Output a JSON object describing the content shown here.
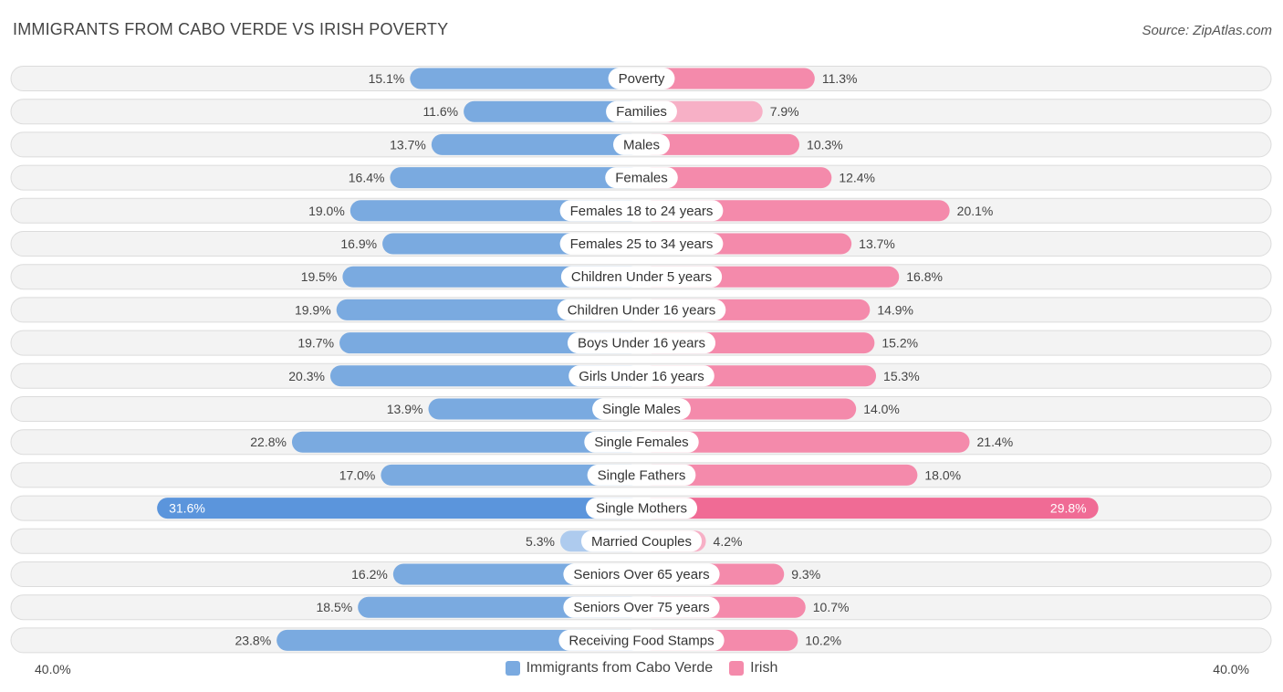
{
  "header": {
    "title": "IMMIGRANTS FROM CABO VERDE VS IRISH POVERTY",
    "source": "Source: ZipAtlas.com"
  },
  "colors": {
    "left": "#7aaae0",
    "left_light": "#aecbee",
    "left_strong": "#5b95dc",
    "right": "#f48aab",
    "right_light": "#f7b0c6",
    "right_strong": "#f06b95"
  },
  "axis": {
    "left_label": "40.0%",
    "right_label": "40.0%"
  },
  "legend": {
    "left_label": "Immigrants from Cabo Verde",
    "right_label": "Irish"
  },
  "chart_data": {
    "type": "bar",
    "orientation": "horizontal-diverging",
    "title": "IMMIGRANTS FROM CABO VERDE VS IRISH POVERTY",
    "xlim": [
      -40,
      40
    ],
    "categories": [
      "Poverty",
      "Families",
      "Males",
      "Females",
      "Females 18 to 24 years",
      "Females 25 to 34 years",
      "Children Under 5 years",
      "Children Under 16 years",
      "Boys Under 16 years",
      "Girls Under 16 years",
      "Single Males",
      "Single Females",
      "Single Fathers",
      "Single Mothers",
      "Married Couples",
      "Seniors Over 65 years",
      "Seniors Over 75 years",
      "Receiving Food Stamps"
    ],
    "series": [
      {
        "name": "Immigrants from Cabo Verde",
        "values": [
          15.1,
          11.6,
          13.7,
          16.4,
          19.0,
          16.9,
          19.5,
          19.9,
          19.7,
          20.3,
          13.9,
          22.8,
          17.0,
          31.6,
          5.3,
          16.2,
          18.5,
          23.8
        ],
        "labels": [
          "15.1%",
          "11.6%",
          "13.7%",
          "16.4%",
          "19.0%",
          "16.9%",
          "19.5%",
          "19.9%",
          "19.7%",
          "20.3%",
          "13.9%",
          "22.8%",
          "17.0%",
          "31.6%",
          "5.3%",
          "16.2%",
          "18.5%",
          "23.8%"
        ]
      },
      {
        "name": "Irish",
        "values": [
          11.3,
          7.9,
          10.3,
          12.4,
          20.1,
          13.7,
          16.8,
          14.9,
          15.2,
          15.3,
          14.0,
          21.4,
          18.0,
          29.8,
          4.2,
          9.3,
          10.7,
          10.2
        ],
        "labels": [
          "11.3%",
          "7.9%",
          "10.3%",
          "12.4%",
          "20.1%",
          "13.7%",
          "16.8%",
          "14.9%",
          "15.2%",
          "15.3%",
          "14.0%",
          "21.4%",
          "18.0%",
          "29.8%",
          "4.2%",
          "9.3%",
          "10.7%",
          "10.2%"
        ]
      }
    ]
  }
}
